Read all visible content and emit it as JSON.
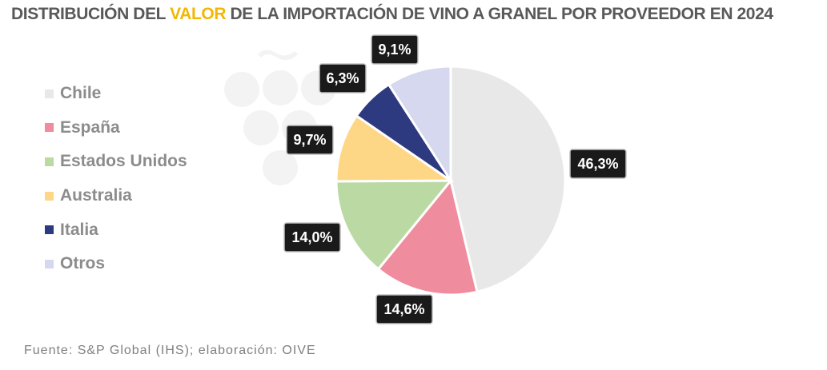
{
  "title": {
    "before": "DISTRIBUCIÓN DEL ",
    "accent": "VALOR",
    "after": " DE LA IMPORTACIÓN  DE VINO A GRANEL POR PROVEEDOR EN 2024"
  },
  "source": "Fuente:  S&P Global  (IHS); elaboración:  OIVE",
  "chart_data": {
    "type": "pie",
    "legend_position": "left",
    "slices": [
      {
        "label": "Chile",
        "value": 46.3,
        "display": "46,3%",
        "color": "#e8e8e8"
      },
      {
        "label": "España",
        "value": 14.6,
        "display": "14,6%",
        "color": "#ef8c9e"
      },
      {
        "label": "Estados Unidos",
        "value": 14.0,
        "display": "14,0%",
        "color": "#bad9a3"
      },
      {
        "label": "Australia",
        "value": 9.7,
        "display": "9,7%",
        "color": "#fed786"
      },
      {
        "label": "Italia",
        "value": 6.3,
        "display": "6,3%",
        "color": "#2e3a80"
      },
      {
        "label": "Otros",
        "value": 9.1,
        "display": "9,1%",
        "color": "#d5d8ef"
      }
    ]
  }
}
